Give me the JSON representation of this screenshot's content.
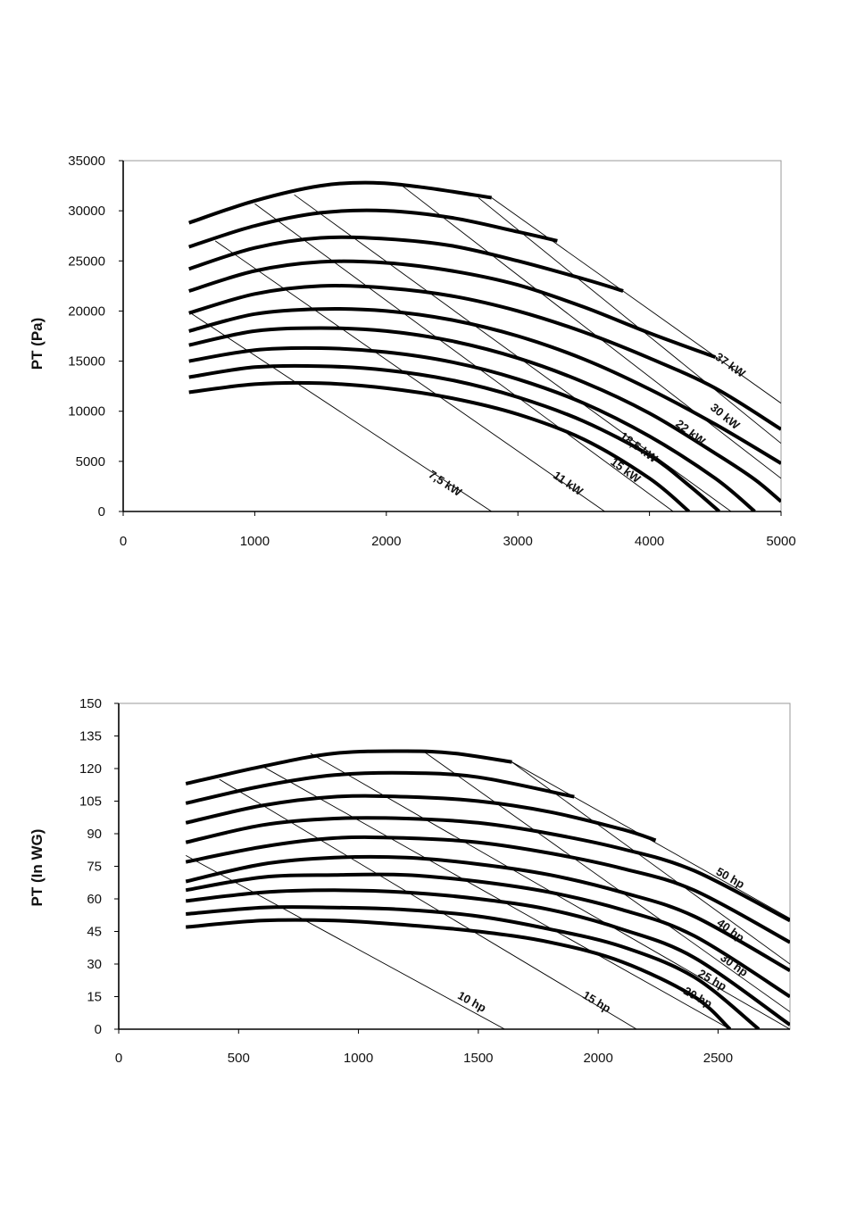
{
  "chart_data": [
    {
      "type": "line",
      "title": "",
      "xlabel": "",
      "ylabel": "PT (Pa)",
      "xlim": [
        0,
        5000
      ],
      "ylim": [
        0,
        35000
      ],
      "xticks": [
        "0",
        "1000",
        "2000",
        "3000",
        "4000",
        "5000"
      ],
      "yticks": [
        "0",
        "5000",
        "10000",
        "15000",
        "20000",
        "25000",
        "30000",
        "35000"
      ],
      "grid": false,
      "series": [
        {
          "kind": "fan-curve",
          "x": [
            500,
            1000,
            1500,
            1900,
            2300,
            2800
          ],
          "y": [
            28800,
            31000,
            32500,
            32800,
            32300,
            31300
          ]
        },
        {
          "kind": "fan-curve",
          "x": [
            500,
            1000,
            1500,
            2000,
            2500,
            3000,
            3300
          ],
          "y": [
            26400,
            28500,
            29800,
            30000,
            29300,
            27900,
            27000
          ]
        },
        {
          "kind": "fan-curve",
          "x": [
            500,
            1000,
            1500,
            2000,
            2500,
            3000,
            3500,
            3800
          ],
          "y": [
            24200,
            26300,
            27300,
            27200,
            26500,
            25000,
            23200,
            22000
          ]
        },
        {
          "kind": "fan-curve",
          "x": [
            500,
            1000,
            1500,
            2000,
            2500,
            3000,
            3500,
            4000,
            4500
          ],
          "y": [
            22000,
            24000,
            24900,
            24800,
            24000,
            22600,
            20400,
            17800,
            15400
          ]
        },
        {
          "kind": "fan-curve",
          "x": [
            500,
            1000,
            1500,
            2000,
            2500,
            3000,
            3500,
            4000,
            4500,
            5000
          ],
          "y": [
            19800,
            21700,
            22500,
            22300,
            21500,
            20000,
            17900,
            15300,
            12300,
            8200
          ]
        },
        {
          "kind": "fan-curve",
          "x": [
            500,
            1000,
            1500,
            2000,
            2500,
            3000,
            3500,
            4000,
            4500,
            5000
          ],
          "y": [
            18000,
            19700,
            20200,
            20000,
            19100,
            17500,
            15200,
            12200,
            8700,
            4800
          ]
        },
        {
          "kind": "fan-curve",
          "x": [
            500,
            1000,
            1500,
            2000,
            2500,
            3000,
            3500,
            4000,
            4500,
            4800,
            5000
          ],
          "y": [
            16600,
            18000,
            18300,
            18000,
            17000,
            15300,
            12900,
            9800,
            5800,
            3200,
            1000
          ]
        },
        {
          "kind": "fan-curve",
          "x": [
            500,
            1000,
            1500,
            2000,
            2500,
            3000,
            3500,
            4000,
            4500,
            4800
          ],
          "y": [
            15000,
            16100,
            16300,
            15900,
            14900,
            13200,
            10800,
            7500,
            3300,
            0
          ]
        },
        {
          "kind": "fan-curve",
          "x": [
            500,
            1000,
            1500,
            2000,
            2500,
            3000,
            3500,
            4000,
            4300,
            4530
          ],
          "y": [
            13400,
            14400,
            14500,
            14100,
            13100,
            11400,
            9000,
            5600,
            2600,
            0
          ]
        },
        {
          "kind": "fan-curve",
          "x": [
            500,
            1000,
            1500,
            2000,
            2500,
            3000,
            3500,
            4000,
            4300
          ],
          "y": [
            11900,
            12700,
            12800,
            12300,
            11300,
            9700,
            7200,
            3300,
            0
          ]
        },
        {
          "name": "7,5 kW",
          "kind": "power-line",
          "x": [
            500,
            2800
          ],
          "y": [
            19900,
            0
          ]
        },
        {
          "name": "11 kW",
          "kind": "power-line",
          "x": [
            700,
            3660
          ],
          "y": [
            27000,
            0
          ]
        },
        {
          "name": "15 kW",
          "kind": "power-line",
          "x": [
            1000,
            4180
          ],
          "y": [
            30700,
            0
          ]
        },
        {
          "name": "18,5 kW",
          "kind": "power-line",
          "x": [
            1300,
            4620
          ],
          "y": [
            31600,
            0
          ]
        },
        {
          "name": "22 kW",
          "kind": "power-line",
          "x": [
            2100,
            5000
          ],
          "y": [
            32700,
            3300
          ]
        },
        {
          "name": "30 kW",
          "kind": "power-line",
          "x": [
            2700,
            5000
          ],
          "y": [
            31300,
            6800
          ]
        },
        {
          "name": "37 kW",
          "kind": "power-line",
          "x": [
            2800,
            5000
          ],
          "y": [
            31300,
            10800
          ]
        }
      ]
    },
    {
      "type": "line",
      "title": "",
      "xlabel": "",
      "ylabel": "PT (In WG)",
      "xlim": [
        0,
        2800
      ],
      "ylim": [
        0,
        150
      ],
      "xticks": [
        "0",
        "500",
        "1000",
        "1500",
        "2000",
        "2500"
      ],
      "yticks": [
        "0",
        "15",
        "30",
        "45",
        "60",
        "75",
        "90",
        "105",
        "120",
        "135",
        "150"
      ],
      "grid": false,
      "series": [
        {
          "kind": "fan-curve",
          "x": [
            280,
            600,
            900,
            1200,
            1400,
            1640
          ],
          "y": [
            113,
            121,
            127,
            128,
            127,
            123
          ]
        },
        {
          "kind": "fan-curve",
          "x": [
            280,
            600,
            900,
            1200,
            1500,
            1900
          ],
          "y": [
            104,
            112,
            117,
            118,
            116,
            107
          ]
        },
        {
          "kind": "fan-curve",
          "x": [
            280,
            600,
            900,
            1200,
            1500,
            1800,
            2100,
            2240
          ],
          "y": [
            95,
            103,
            107,
            107,
            105,
            100,
            92,
            87
          ]
        },
        {
          "kind": "fan-curve",
          "x": [
            280,
            600,
            900,
            1200,
            1500,
            1800,
            2100,
            2400,
            2800
          ],
          "y": [
            86,
            94,
            97,
            97,
            95,
            90,
            83,
            73,
            50
          ]
        },
        {
          "kind": "fan-curve",
          "x": [
            280,
            600,
            900,
            1200,
            1500,
            1800,
            2100,
            2400,
            2800
          ],
          "y": [
            77,
            84,
            88,
            88,
            86,
            81,
            74,
            64,
            40
          ]
        },
        {
          "kind": "fan-curve",
          "x": [
            280,
            600,
            900,
            1200,
            1500,
            1800,
            2100,
            2400,
            2800
          ],
          "y": [
            68,
            76,
            79,
            79,
            76,
            71,
            63,
            52,
            27
          ]
        },
        {
          "kind": "fan-curve",
          "x": [
            280,
            600,
            900,
            1200,
            1500,
            1800,
            2100,
            2400,
            2800
          ],
          "y": [
            64,
            70,
            71,
            71,
            68,
            63,
            55,
            43,
            15
          ]
        },
        {
          "kind": "fan-curve",
          "x": [
            280,
            600,
            900,
            1200,
            1500,
            1800,
            2100,
            2400,
            2800
          ],
          "y": [
            59,
            63,
            64,
            63,
            60,
            55,
            46,
            33,
            2
          ]
        },
        {
          "kind": "fan-curve",
          "x": [
            280,
            600,
            900,
            1200,
            1500,
            1800,
            2100,
            2400,
            2670
          ],
          "y": [
            53,
            56,
            56,
            55,
            52,
            46,
            38,
            24,
            0
          ]
        },
        {
          "kind": "fan-curve",
          "x": [
            280,
            600,
            900,
            1200,
            1500,
            1800,
            2100,
            2400,
            2550
          ],
          "y": [
            47,
            50,
            50,
            48,
            45,
            40,
            31,
            15,
            0
          ]
        },
        {
          "name": "10 hp",
          "kind": "power-line",
          "x": [
            280,
            1610
          ],
          "y": [
            80,
            0
          ]
        },
        {
          "name": "15 hp",
          "kind": "power-line",
          "x": [
            420,
            2160
          ],
          "y": [
            115,
            0
          ]
        },
        {
          "name": "20 hp",
          "kind": "power-line",
          "x": [
            600,
            2550
          ],
          "y": [
            121,
            0
          ]
        },
        {
          "name": "25 hp",
          "kind": "power-line",
          "x": [
            800,
            2800
          ],
          "y": [
            127,
            0
          ]
        },
        {
          "name": "30 hp",
          "kind": "power-line",
          "x": [
            1270,
            2800
          ],
          "y": [
            128,
            8
          ]
        },
        {
          "name": "40 hp",
          "kind": "power-line",
          "x": [
            1640,
            2800
          ],
          "y": [
            123,
            30
          ]
        },
        {
          "name": "50 hp",
          "kind": "power-line",
          "x": [
            1640,
            2800
          ],
          "y": [
            123,
            51
          ]
        }
      ]
    }
  ]
}
